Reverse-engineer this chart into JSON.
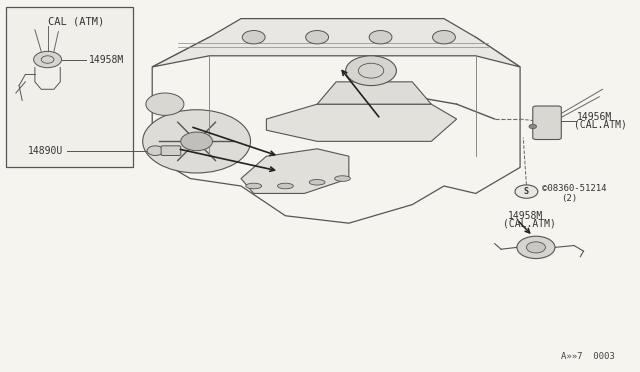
{
  "bg_color": "#f5f4ef",
  "line_color": "#555555",
  "text_color": "#333333",
  "diagram_id": "A»»7  0003",
  "labels": {
    "cal_atm_inset": "CAL (ATM)",
    "part_14958M_inset": "14958M",
    "part_14890U": "14890U",
    "part_14956M": "14956M",
    "part_14956M_sub": "(CAL.ATM)",
    "part_08360": "©08360-51214",
    "part_08360_sub": "(2)",
    "part_14958M_main": "14958M",
    "part_14958M_main_sub": "(CAL.ATM)"
  }
}
